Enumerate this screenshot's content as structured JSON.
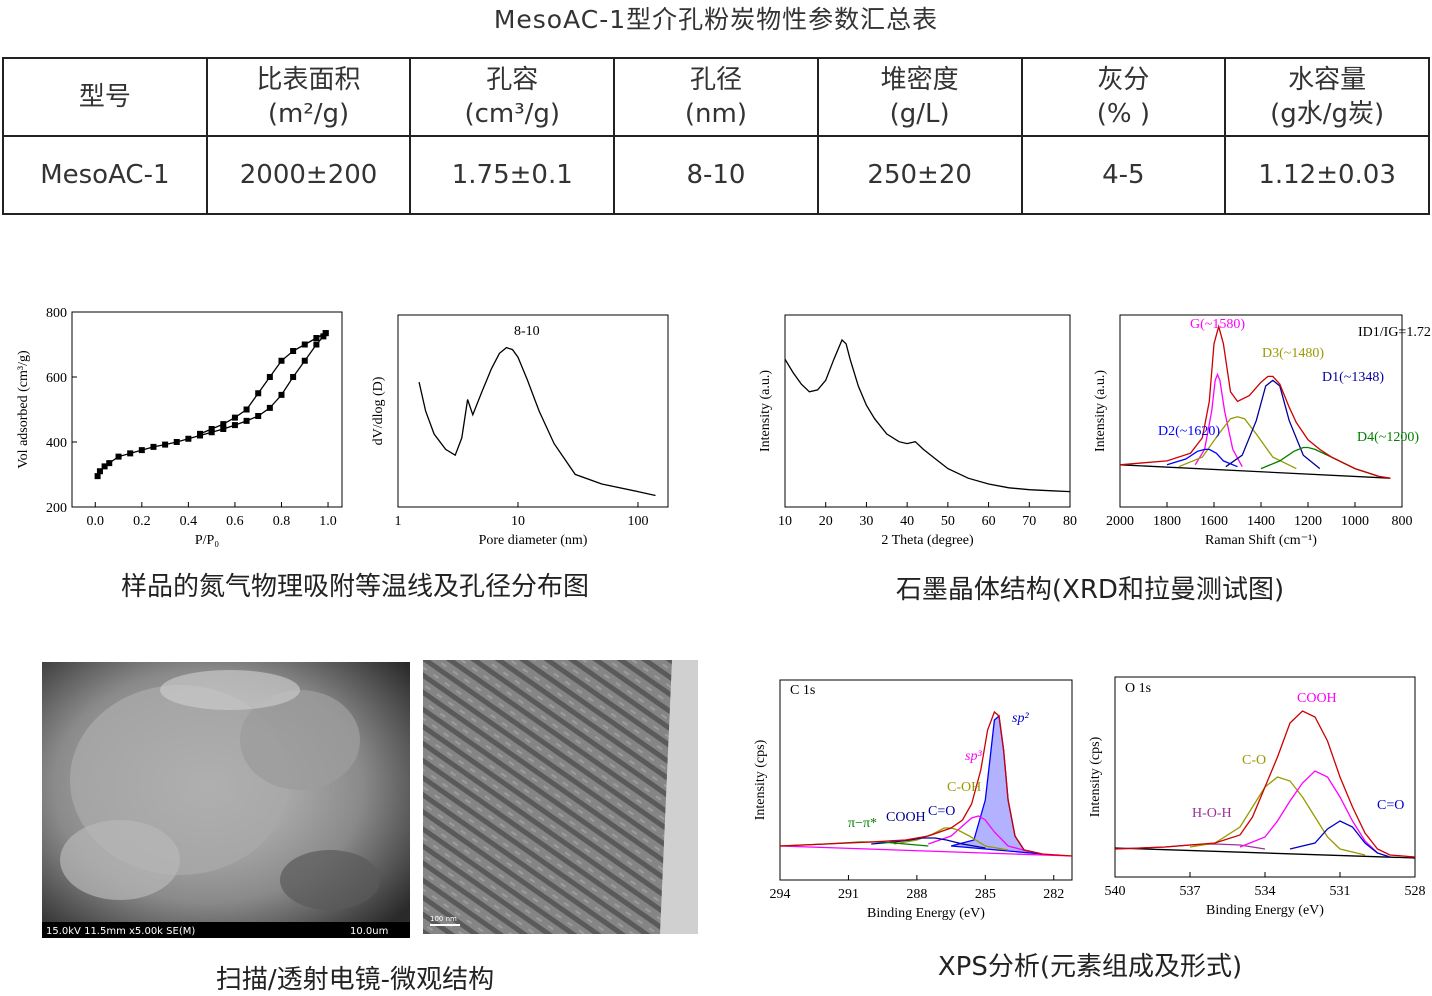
{
  "title": "MesoAC-1型介孔粉炭物性参数汇总表",
  "table": {
    "header": [
      "型号",
      [
        "比表面积",
        "(m²/g)"
      ],
      [
        "孔容",
        "(cm³/g)"
      ],
      [
        "孔径",
        "(nm)"
      ],
      [
        "堆密度",
        "(g/L)"
      ],
      [
        "灰分",
        "(% )"
      ],
      [
        "水容量",
        "(g水/g炭)"
      ]
    ],
    "rows": [
      [
        "MesoAC-1",
        "2000±200",
        "1.75±0.1",
        "8-10",
        "250±20",
        "4-5",
        "1.12±0.03"
      ]
    ]
  },
  "captions": [
    "样品的氮气物理吸附等温线及孔径分布图",
    "石墨晶体结构(XRD和拉曼测试图)",
    "扫描/透射电镜-微观结构",
    "XPS分析(元素组成及形式)"
  ],
  "images": {
    "sem_info": "15.0kV 11.5mm x5.00k SE(M)",
    "sem_scale": "10.0um",
    "tem_scale": "100 nm"
  },
  "figures": [
    {
      "xlabel": "P/P₀",
      "ylabel": "Vol adsorbed (cm³/g)",
      "xlim": [
        -0.1,
        1.06
      ],
      "ylim": [
        200,
        800
      ],
      "xticks": [
        {
          "value": 0,
          "label": "0.0"
        },
        0.2,
        0.4,
        0.6,
        0.8,
        {
          "value": 1,
          "label": "1.0"
        }
      ],
      "yticks": [
        200,
        400,
        600,
        800
      ],
      "series": [
        {
          "color": "#000000",
          "marker": "square",
          "x": [
            0.01,
            0.02,
            0.04,
            0.06,
            0.1,
            0.15,
            0.2,
            0.25,
            0.3,
            0.35,
            0.4,
            0.45,
            0.5,
            0.55,
            0.6,
            0.65,
            0.7,
            0.75,
            0.8,
            0.85,
            0.9,
            0.95,
            0.98,
            0.99
          ],
          "y": [
            295,
            310,
            325,
            335,
            355,
            365,
            375,
            385,
            392,
            400,
            410,
            420,
            430,
            440,
            452,
            465,
            480,
            505,
            545,
            600,
            650,
            700,
            725,
            735
          ]
        },
        {
          "color": "#000000",
          "marker": "square",
          "x": [
            0.99,
            0.95,
            0.9,
            0.85,
            0.8,
            0.75,
            0.7,
            0.65,
            0.6,
            0.55,
            0.5,
            0.45
          ],
          "y": [
            735,
            720,
            700,
            680,
            650,
            600,
            550,
            500,
            475,
            455,
            440,
            425
          ]
        }
      ],
      "annotations": []
    },
    {
      "xlabel": "Pore diameter (nm)",
      "ylabel": "dV/dlog (D)",
      "log": true,
      "xlim": [
        1,
        178
      ],
      "ylim": [
        0,
        1
      ],
      "xticks": [
        1,
        10,
        100
      ],
      "series": [
        {
          "color": "#000000",
          "x": [
            1.5,
            1.7,
            2,
            2.5,
            3,
            3.4,
            3.8,
            4.2,
            5,
            6,
            7,
            8,
            9,
            10,
            12,
            15,
            20,
            30,
            50,
            100,
            140
          ],
          "y": [
            0.65,
            0.5,
            0.38,
            0.3,
            0.27,
            0.36,
            0.56,
            0.48,
            0.6,
            0.72,
            0.8,
            0.83,
            0.82,
            0.78,
            0.66,
            0.5,
            0.33,
            0.17,
            0.12,
            0.08,
            0.06
          ]
        }
      ],
      "annotations": [
        {
          "text": "8-10",
          "color": "#000000"
        }
      ]
    },
    {
      "xlabel": "2 Theta (degree)",
      "ylabel": "Intensity (a.u.)",
      "xlim": [
        10,
        80
      ],
      "ylim": [
        0,
        1
      ],
      "xticks": [
        10,
        20,
        30,
        40,
        50,
        60,
        70,
        80
      ],
      "series": [
        {
          "color": "#000000",
          "x": [
            10,
            12,
            14,
            16,
            18,
            20,
            22,
            24,
            25,
            26,
            28,
            30,
            32,
            35,
            38,
            40,
            42,
            44,
            47,
            50,
            55,
            60,
            65,
            70,
            75,
            80
          ],
          "y": [
            0.77,
            0.7,
            0.64,
            0.6,
            0.61,
            0.66,
            0.77,
            0.87,
            0.85,
            0.77,
            0.63,
            0.53,
            0.46,
            0.38,
            0.34,
            0.33,
            0.34,
            0.3,
            0.25,
            0.2,
            0.15,
            0.12,
            0.1,
            0.09,
            0.085,
            0.08
          ]
        }
      ],
      "annotations": []
    },
    {
      "xlabel": "Raman Shift (cm⁻¹)",
      "ylabel": "Intensity (a.u.)",
      "xlim": [
        2000,
        800
      ],
      "ylim": [
        0,
        1
      ],
      "xticks": [
        2000,
        1800,
        1600,
        1400,
        1200,
        1000,
        800
      ],
      "series": [
        {
          "color": "#000000",
          "x": [
            2000,
            850
          ],
          "y": [
            0.22,
            0.15
          ]
        },
        {
          "color": "#ff00ff",
          "x": [
            1680,
            1640,
            1610,
            1595,
            1585,
            1575,
            1555,
            1520,
            1480
          ],
          "y": [
            0.22,
            0.3,
            0.5,
            0.66,
            0.69,
            0.66,
            0.5,
            0.3,
            0.21
          ]
        },
        {
          "color": "#999900",
          "x": [
            1750,
            1650,
            1580,
            1530,
            1500,
            1470,
            1420,
            1350,
            1250
          ],
          "y": [
            0.21,
            0.26,
            0.38,
            0.46,
            0.47,
            0.46,
            0.38,
            0.26,
            0.2
          ]
        },
        {
          "color": "#000099",
          "x": [
            1550,
            1480,
            1420,
            1380,
            1350,
            1320,
            1280,
            1220,
            1150
          ],
          "y": [
            0.21,
            0.27,
            0.45,
            0.63,
            0.66,
            0.63,
            0.45,
            0.27,
            0.2
          ]
        },
        {
          "color": "#0000ff",
          "x": [
            1800,
            1720,
            1670,
            1640,
            1620,
            1590,
            1560,
            1500
          ],
          "y": [
            0.22,
            0.25,
            0.29,
            0.3,
            0.3,
            0.28,
            0.24,
            0.21
          ]
        },
        {
          "color": "#008000",
          "x": [
            1400,
            1320,
            1260,
            1220,
            1200,
            1170,
            1100,
            1000,
            900
          ],
          "y": [
            0.2,
            0.24,
            0.29,
            0.31,
            0.31,
            0.3,
            0.26,
            0.2,
            0.16
          ]
        },
        {
          "color": "#cc0000",
          "x": [
            2000,
            1900,
            1800,
            1700,
            1650,
            1620,
            1600,
            1580,
            1560,
            1530,
            1500,
            1450,
            1400,
            1370,
            1350,
            1320,
            1280,
            1250,
            1200,
            1150,
            1100,
            1000,
            900,
            850
          ],
          "y": [
            0.22,
            0.23,
            0.24,
            0.28,
            0.36,
            0.55,
            0.85,
            0.94,
            0.85,
            0.6,
            0.55,
            0.58,
            0.65,
            0.68,
            0.68,
            0.64,
            0.52,
            0.44,
            0.35,
            0.3,
            0.26,
            0.2,
            0.16,
            0.15
          ]
        }
      ],
      "annotations": [
        {
          "text": "G(~1580)",
          "color": "#ff00ff"
        },
        {
          "text": "D3(~1480)",
          "color": "#999900"
        },
        {
          "text": "D1(~1348)",
          "color": "#000099"
        },
        {
          "text": "D2(~1620)",
          "color": "#0000ff"
        },
        {
          "text": "D4(~1200)",
          "color": "#008000"
        },
        {
          "text": "ID1/IG=1.72",
          "color": "#000000"
        }
      ]
    },
    {
      "xlabel": "Binding Energy (eV)",
      "ylabel": "Intensity (cps)",
      "xlim": [
        294,
        281.2
      ],
      "ylim": [
        0,
        1
      ],
      "xticks": [
        294,
        291,
        288,
        285,
        282
      ],
      "series": [
        {
          "color": "#0000ff",
          "fill": true,
          "x": [
            286.5,
            285.5,
            285,
            284.8,
            284.6,
            284.4,
            284.2,
            284,
            283.7,
            283.3,
            282.5
          ],
          "y": [
            0.17,
            0.2,
            0.4,
            0.6,
            0.8,
            0.82,
            0.65,
            0.4,
            0.22,
            0.15,
            0.13
          ]
        },
        {
          "color": "#ff00ff",
          "x": [
            294,
            281.2
          ],
          "y": [
            0.17,
            0.12
          ]
        },
        {
          "color": "#ff00ff",
          "x": [
            287.5,
            286.5,
            286,
            285.6,
            285.3,
            285,
            284.6,
            284,
            283
          ],
          "y": [
            0.18,
            0.22,
            0.27,
            0.31,
            0.32,
            0.3,
            0.24,
            0.17,
            0.14
          ]
        },
        {
          "color": "#999900",
          "x": [
            289,
            288,
            287.3,
            286.8,
            286.5,
            286.2,
            285.7,
            285,
            284
          ],
          "y": [
            0.18,
            0.2,
            0.23,
            0.26,
            0.26,
            0.25,
            0.22,
            0.17,
            0.15
          ]
        },
        {
          "color": "#000099",
          "x": [
            290,
            289,
            288.3,
            287.8,
            287.5,
            287.2,
            286.7,
            286,
            285
          ],
          "y": [
            0.18,
            0.19,
            0.2,
            0.21,
            0.21,
            0.21,
            0.2,
            0.18,
            0.16
          ]
        },
        {
          "color": "#008000",
          "x": [
            294,
            292,
            290.5,
            289.5,
            288.5,
            287.5
          ],
          "y": [
            0.17,
            0.18,
            0.19,
            0.19,
            0.18,
            0.17
          ]
        },
        {
          "color": "#cc0000",
          "x": [
            294,
            292,
            290,
            288.5,
            287.5,
            286.5,
            286,
            285.6,
            285.2,
            284.9,
            284.6,
            284.4,
            284.2,
            284,
            283.7,
            283.3,
            282.5,
            281.2
          ],
          "y": [
            0.17,
            0.18,
            0.19,
            0.2,
            0.22,
            0.26,
            0.3,
            0.38,
            0.55,
            0.75,
            0.84,
            0.82,
            0.65,
            0.4,
            0.22,
            0.15,
            0.13,
            0.12
          ]
        }
      ],
      "annotations": [
        {
          "text": "C 1s",
          "color": "#000000"
        },
        {
          "text": "sp²",
          "color": "#0000cc",
          "italic": true
        },
        {
          "text": "sp³",
          "color": "#ff00ff",
          "italic": true
        },
        {
          "text": "C-OH",
          "color": "#999900"
        },
        {
          "text": "C=O",
          "color": "#000099"
        },
        {
          "text": "π−π*",
          "color": "#008000"
        },
        {
          "text": "COOH",
          "color": "#000099"
        }
      ]
    },
    {
      "xlabel": "Binding Energy (eV)",
      "ylabel": "Intensity (cps)",
      "xlim": [
        540,
        528
      ],
      "ylim": [
        0,
        1
      ],
      "xticks": [
        540,
        537,
        534,
        531,
        528
      ],
      "series": [
        {
          "color": "#000000",
          "x": [
            540,
            528
          ],
          "y": [
            0.145,
            0.095
          ]
        },
        {
          "color": "#993399",
          "x": [
            540,
            538,
            537,
            536,
            535,
            534
          ],
          "y": [
            0.14,
            0.15,
            0.16,
            0.165,
            0.16,
            0.14
          ]
        },
        {
          "color": "#999900",
          "x": [
            537,
            536,
            535,
            534.5,
            534,
            533.5,
            533,
            532.5,
            532,
            531.5,
            531,
            530
          ],
          "y": [
            0.15,
            0.17,
            0.25,
            0.35,
            0.45,
            0.5,
            0.48,
            0.4,
            0.3,
            0.2,
            0.14,
            0.11
          ]
        },
        {
          "color": "#ff00ff",
          "x": [
            535,
            534,
            533.5,
            533,
            532.5,
            532,
            531.5,
            531,
            530.5,
            530,
            529.5
          ],
          "y": [
            0.15,
            0.2,
            0.28,
            0.38,
            0.47,
            0.53,
            0.5,
            0.4,
            0.28,
            0.18,
            0.12
          ]
        },
        {
          "color": "#0000cc",
          "x": [
            533,
            532,
            531.5,
            531,
            530.5,
            530,
            529.5,
            529
          ],
          "y": [
            0.14,
            0.17,
            0.24,
            0.28,
            0.25,
            0.17,
            0.12,
            0.1
          ]
        },
        {
          "color": "#cc0000",
          "x": [
            540,
            538,
            537,
            536,
            535,
            534.5,
            534,
            533.5,
            533,
            532.5,
            532,
            531.5,
            531,
            530.5,
            530,
            529.5,
            529,
            528
          ],
          "y": [
            0.14,
            0.15,
            0.16,
            0.17,
            0.21,
            0.3,
            0.45,
            0.6,
            0.77,
            0.83,
            0.8,
            0.68,
            0.5,
            0.35,
            0.22,
            0.14,
            0.11,
            0.1
          ]
        }
      ],
      "annotations": [
        {
          "text": "O 1s",
          "color": "#000000"
        },
        {
          "text": "COOH",
          "color": "#ff00ff"
        },
        {
          "text": "C-O",
          "color": "#999900"
        },
        {
          "text": "C=O",
          "color": "#0000cc"
        },
        {
          "text": "H-O-H",
          "color": "#993399"
        }
      ]
    }
  ]
}
